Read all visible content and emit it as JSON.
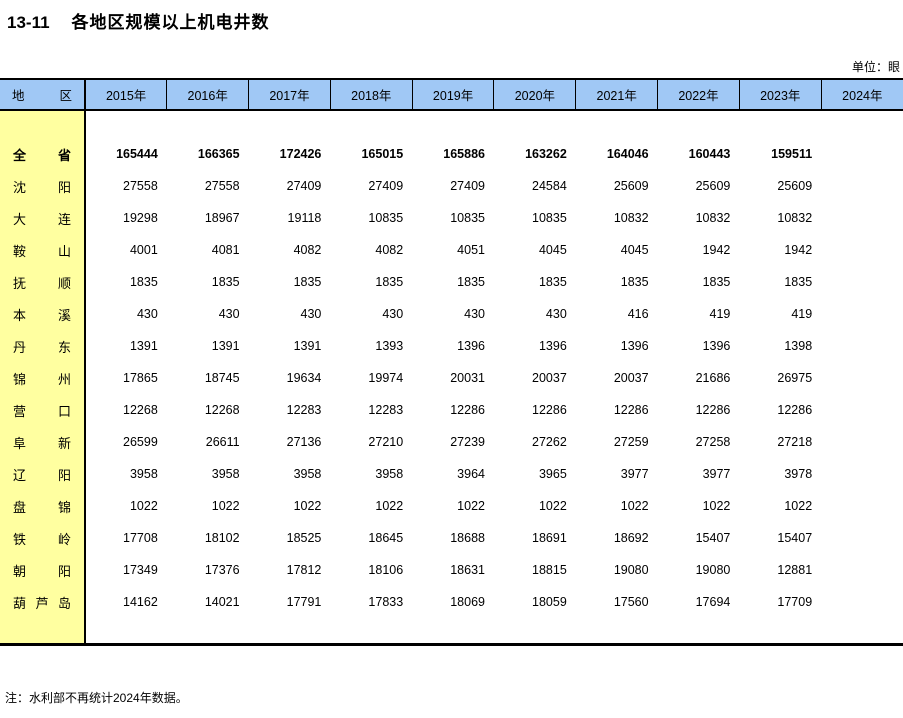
{
  "title": {
    "code": "13-11",
    "text": "各地区规模以上机电井数"
  },
  "unit_label": "单位：眼",
  "note": "注：水利部不再统计2024年数据。",
  "colors": {
    "header_bg": "#A0C8F5",
    "region_bg": "#FFFFA0",
    "border": "#000000"
  },
  "table": {
    "region_header": "地区",
    "year_headers": [
      "2015年",
      "2016年",
      "2017年",
      "2018年",
      "2019年",
      "2020年",
      "2021年",
      "2022年",
      "2023年",
      "2024年"
    ],
    "rows": [
      {
        "region": "全省",
        "bold": true,
        "values": [
          "165444",
          "166365",
          "172426",
          "165015",
          "165886",
          "163262",
          "164046",
          "160443",
          "159511",
          ""
        ]
      },
      {
        "region": "沈阳",
        "bold": false,
        "values": [
          "27558",
          "27558",
          "27409",
          "27409",
          "27409",
          "24584",
          "25609",
          "25609",
          "25609",
          ""
        ]
      },
      {
        "region": "大连",
        "bold": false,
        "values": [
          "19298",
          "18967",
          "19118",
          "10835",
          "10835",
          "10835",
          "10832",
          "10832",
          "10832",
          ""
        ]
      },
      {
        "region": "鞍山",
        "bold": false,
        "values": [
          "4001",
          "4081",
          "4082",
          "4082",
          "4051",
          "4045",
          "4045",
          "1942",
          "1942",
          ""
        ]
      },
      {
        "region": "抚顺",
        "bold": false,
        "values": [
          "1835",
          "1835",
          "1835",
          "1835",
          "1835",
          "1835",
          "1835",
          "1835",
          "1835",
          ""
        ]
      },
      {
        "region": "本溪",
        "bold": false,
        "values": [
          "430",
          "430",
          "430",
          "430",
          "430",
          "430",
          "416",
          "419",
          "419",
          ""
        ]
      },
      {
        "region": "丹东",
        "bold": false,
        "values": [
          "1391",
          "1391",
          "1391",
          "1393",
          "1396",
          "1396",
          "1396",
          "1396",
          "1398",
          ""
        ]
      },
      {
        "region": "锦州",
        "bold": false,
        "values": [
          "17865",
          "18745",
          "19634",
          "19974",
          "20031",
          "20037",
          "20037",
          "21686",
          "26975",
          ""
        ]
      },
      {
        "region": "营口",
        "bold": false,
        "values": [
          "12268",
          "12268",
          "12283",
          "12283",
          "12286",
          "12286",
          "12286",
          "12286",
          "12286",
          ""
        ]
      },
      {
        "region": "阜新",
        "bold": false,
        "values": [
          "26599",
          "26611",
          "27136",
          "27210",
          "27239",
          "27262",
          "27259",
          "27258",
          "27218",
          ""
        ]
      },
      {
        "region": "辽阳",
        "bold": false,
        "values": [
          "3958",
          "3958",
          "3958",
          "3958",
          "3964",
          "3965",
          "3977",
          "3977",
          "3978",
          ""
        ]
      },
      {
        "region": "盘锦",
        "bold": false,
        "values": [
          "1022",
          "1022",
          "1022",
          "1022",
          "1022",
          "1022",
          "1022",
          "1022",
          "1022",
          ""
        ]
      },
      {
        "region": "铁岭",
        "bold": false,
        "values": [
          "17708",
          "18102",
          "18525",
          "18645",
          "18688",
          "18691",
          "18692",
          "15407",
          "15407",
          ""
        ]
      },
      {
        "region": "朝阳",
        "bold": false,
        "values": [
          "17349",
          "17376",
          "17812",
          "18106",
          "18631",
          "18815",
          "19080",
          "19080",
          "12881",
          ""
        ]
      },
      {
        "region": "葫芦岛",
        "bold": false,
        "values": [
          "14162",
          "14021",
          "17791",
          "17833",
          "18069",
          "18059",
          "17560",
          "17694",
          "17709",
          ""
        ]
      }
    ]
  }
}
